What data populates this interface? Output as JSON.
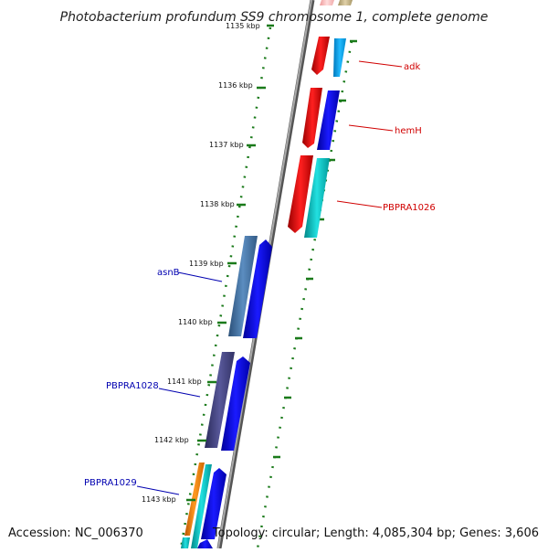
{
  "title": "Photobacterium profundum SS9 chromosome 1, complete genome",
  "footer": {
    "accession": "Accession: NC_006370",
    "summary": "Topology: circular; Length: 4,085,304 bp; Genes: 3,606"
  },
  "colors": {
    "backbone": "#888888",
    "tick": "#1a7a1a",
    "label_top_strand": "#d00000",
    "label_bottom_strand": "#0000b0",
    "red": "#ff0000",
    "blue": "#0000ee",
    "cyan": "#00cccc",
    "light_blue": "#00aaff",
    "steel_blue": "#4477aa",
    "slate": "#444488",
    "orange": "#ff8800",
    "tan": "#c8b890",
    "pink": "#ffbbbb"
  },
  "ticks": [
    {
      "label": "1135 kbp"
    },
    {
      "label": "1136 kbp"
    },
    {
      "label": "1137 kbp"
    },
    {
      "label": "1138 kbp"
    },
    {
      "label": "1139 kbp"
    },
    {
      "label": "1140 kbp"
    },
    {
      "label": "1141 kbp"
    },
    {
      "label": "1142 kbp"
    },
    {
      "label": "1143 kbp"
    }
  ],
  "genes": [
    {
      "label": "adk",
      "strand": "forward",
      "color": "red"
    },
    {
      "label": "hemH",
      "strand": "forward",
      "color": "red"
    },
    {
      "label": "PBPRA1026",
      "strand": "forward",
      "color": "red"
    },
    {
      "label": "asnB",
      "strand": "reverse",
      "color": "steel_blue"
    },
    {
      "label": "PBPRA1028",
      "strand": "reverse",
      "color": "slate"
    },
    {
      "label": "PBPRA1029",
      "strand": "reverse",
      "color": "orange"
    }
  ]
}
